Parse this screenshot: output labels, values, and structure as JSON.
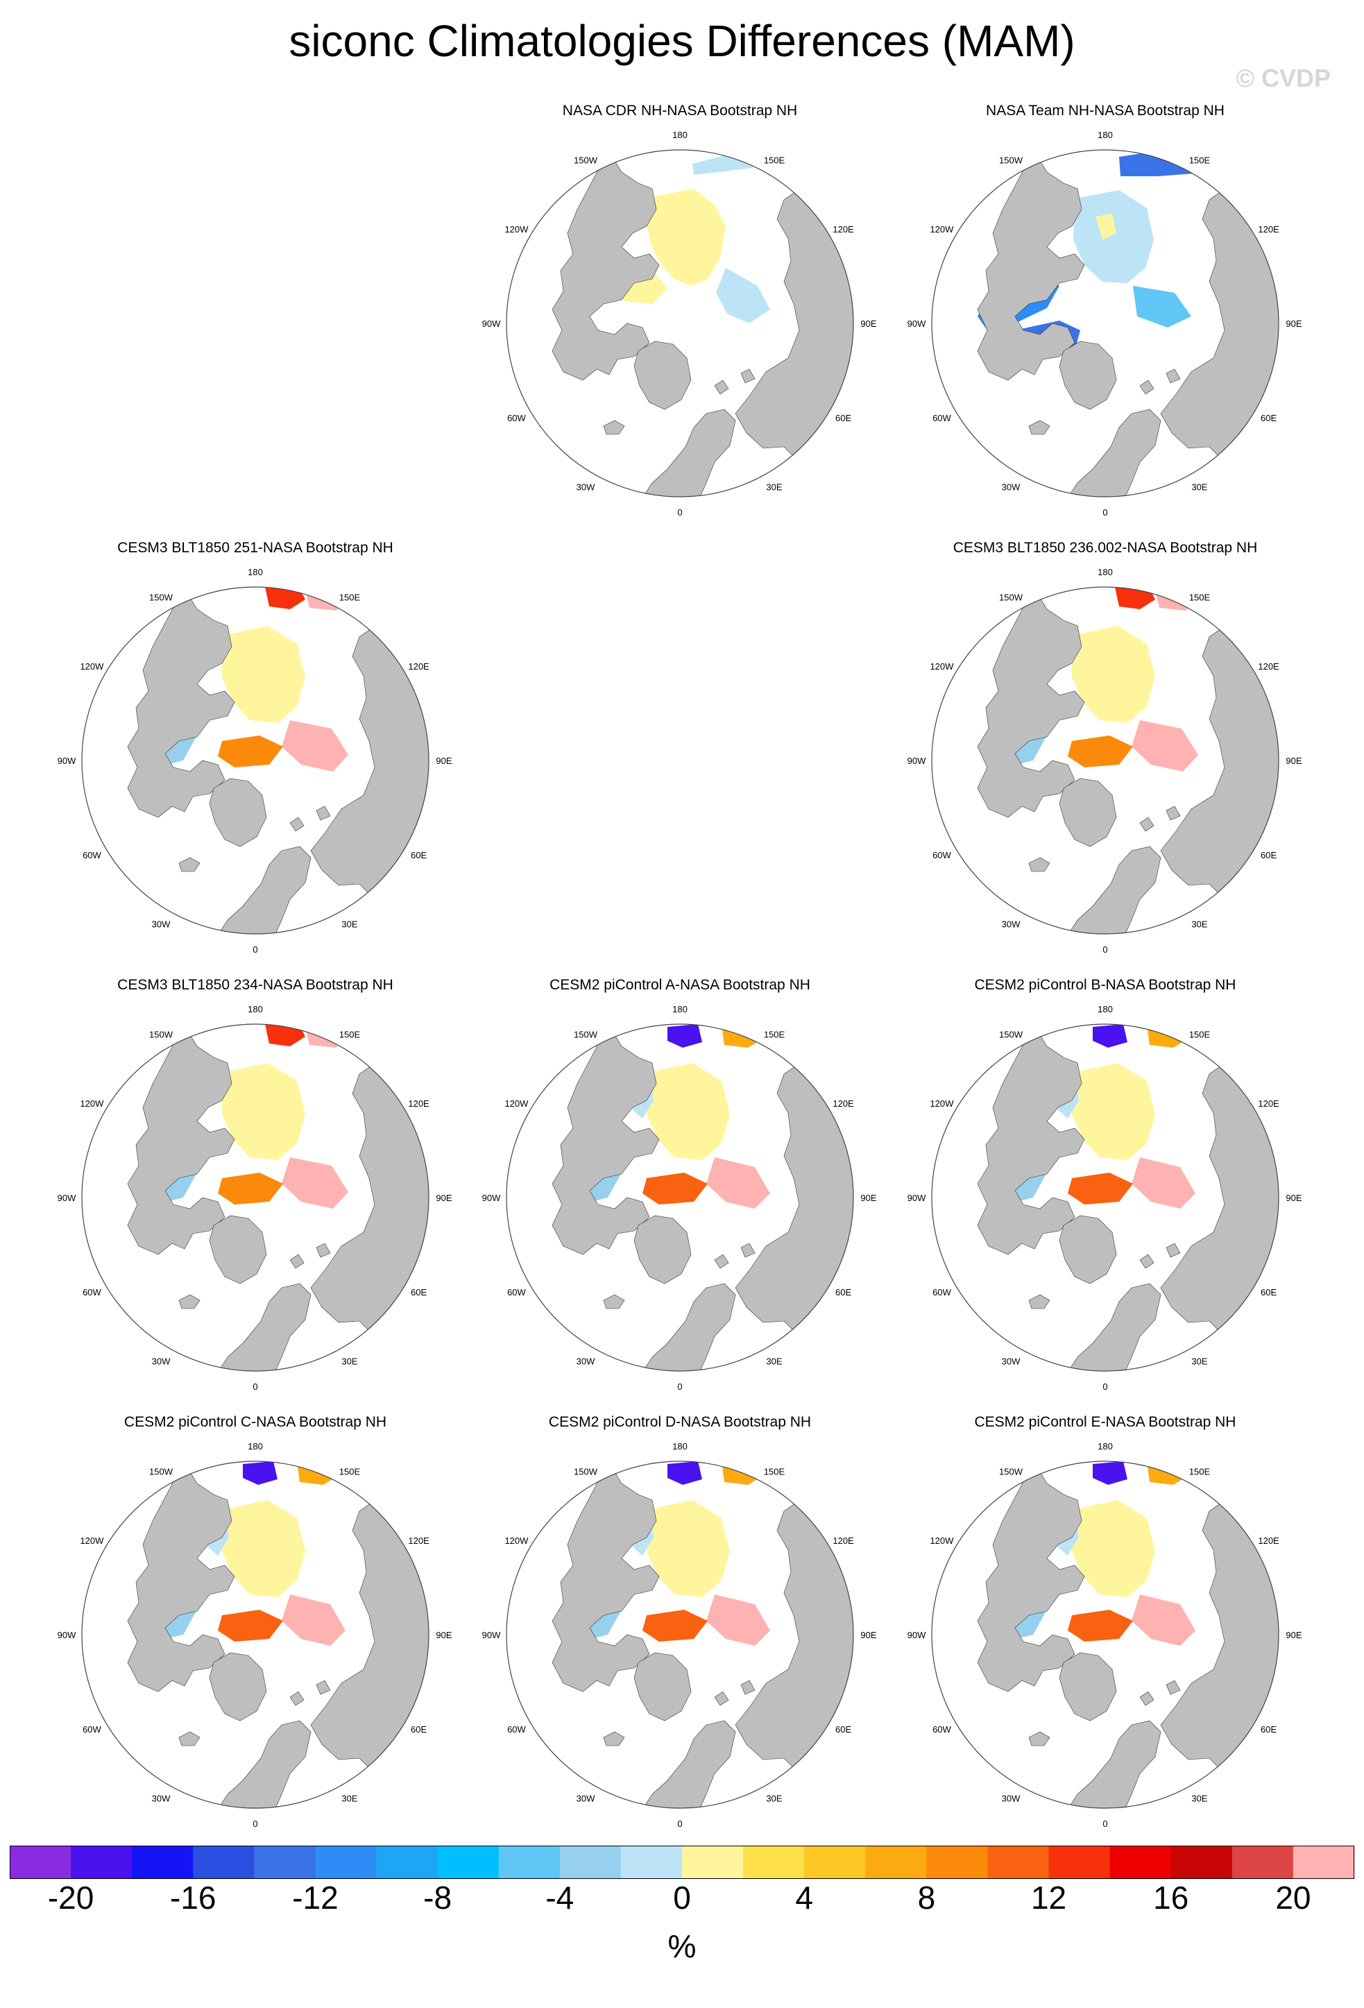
{
  "title": "siconc Climatologies Differences (MAM)",
  "watermark": "© CVDP",
  "units": "%",
  "map_labels": [
    "180",
    "150W",
    "150E",
    "120W",
    "120E",
    "90W",
    "90E",
    "60W",
    "60E",
    "30W",
    "30E",
    "0"
  ],
  "panels": [
    {
      "title": "NASA CDR NH-NASA Bootstrap NH",
      "style": "cdr"
    },
    {
      "title": "NASA Team NH-NASA Bootstrap NH",
      "style": "team"
    },
    {
      "title": "CESM3 BLT1850 251-NASA Bootstrap NH",
      "style": "cesm3"
    },
    {
      "title": "CESM3 BLT1850 236.002-NASA Bootstrap NH",
      "style": "cesm3"
    },
    {
      "title": "CESM3 BLT1850 234-NASA Bootstrap NH",
      "style": "cesm3"
    },
    {
      "title": "CESM2 piControl A-NASA Bootstrap NH",
      "style": "cesm2"
    },
    {
      "title": "CESM2 piControl B-NASA Bootstrap NH",
      "style": "cesm2"
    },
    {
      "title": "CESM2 piControl C-NASA Bootstrap NH",
      "style": "cesm2"
    },
    {
      "title": "CESM2 piControl D-NASA Bootstrap NH",
      "style": "cesm2"
    },
    {
      "title": "CESM2 piControl E-NASA Bootstrap NH",
      "style": "cesm2"
    }
  ],
  "colorbar": {
    "colors": [
      "#8a2be2",
      "#4a12ee",
      "#1414f5",
      "#2b4fe0",
      "#3a73e8",
      "#2d8cf5",
      "#1ea6f5",
      "#00bfff",
      "#5fc6f5",
      "#96d0ee",
      "#bde3f6",
      "#fff59d",
      "#fde04a",
      "#fcc623",
      "#fbab10",
      "#fb8a0b",
      "#f86210",
      "#f9300c",
      "#ee0000",
      "#c80505",
      "#dd4444",
      "#ffb2b2"
    ],
    "tick_labels": [
      "-20",
      "-16",
      "-12",
      "-8",
      "-4",
      "0",
      "4",
      "8",
      "12",
      "16",
      "20"
    ]
  }
}
